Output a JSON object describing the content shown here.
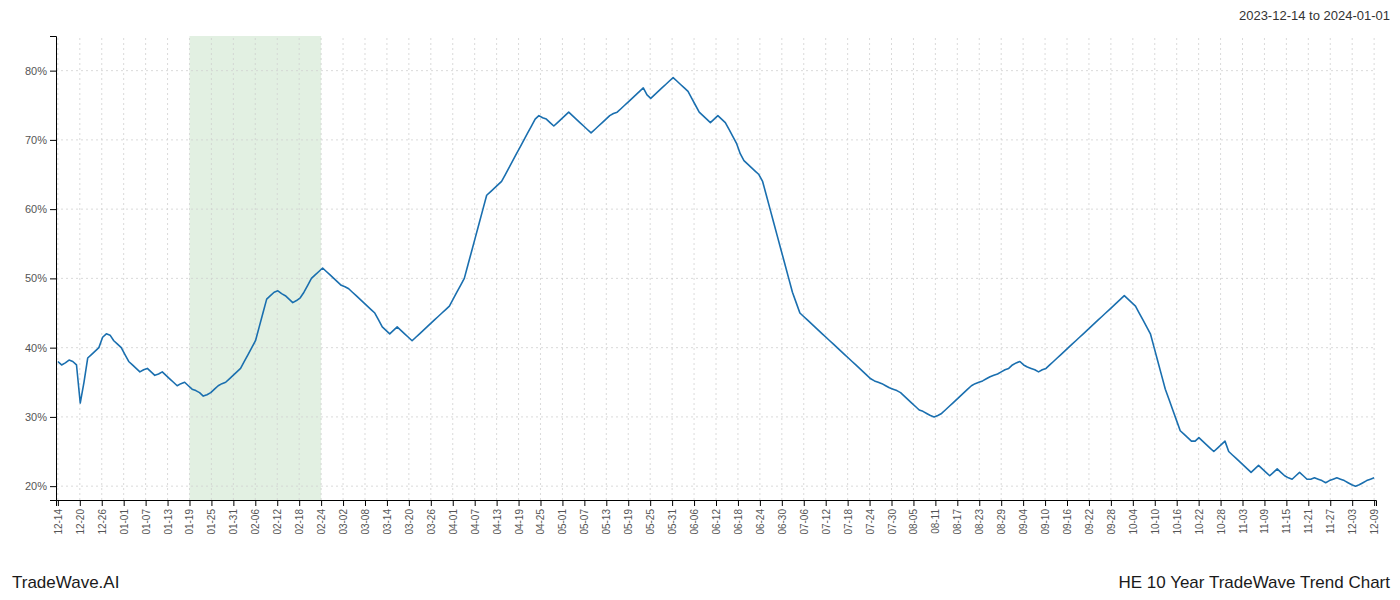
{
  "chart_data": {
    "type": "line",
    "title": "HE 10 Year TradeWave Trend Chart",
    "subtitle": "2023-12-14 to 2024-01-01",
    "annotations": [
      "TradeWave.AI"
    ],
    "color": "#1a6faf",
    "grid": true,
    "highlight": {
      "x": [
        35.3,
        70.6
      ],
      "color": "#e2f0e2"
    },
    "xlim": [
      -0.5,
      353.5
    ],
    "xticks": [
      {
        "value": 0,
        "label": "12-14"
      },
      {
        "value": 5.883333,
        "label": "12-20"
      },
      {
        "value": 11.766667,
        "label": "12-26"
      },
      {
        "value": 17.65,
        "label": "01-01"
      },
      {
        "value": 23.533333,
        "label": "01-07"
      },
      {
        "value": 29.416667,
        "label": "01-13"
      },
      {
        "value": 35.3,
        "label": "01-19"
      },
      {
        "value": 41.183333,
        "label": "01-25"
      },
      {
        "value": 47.066667,
        "label": "01-31"
      },
      {
        "value": 52.95,
        "label": "02-06"
      },
      {
        "value": 58.833333,
        "label": "02-12"
      },
      {
        "value": 64.716667,
        "label": "02-18"
      },
      {
        "value": 70.6,
        "label": "02-24"
      },
      {
        "value": 76.483333,
        "label": "03-02"
      },
      {
        "value": 82.366667,
        "label": "03-08"
      },
      {
        "value": 88.25,
        "label": "03-14"
      },
      {
        "value": 94.133333,
        "label": "03-20"
      },
      {
        "value": 100.016667,
        "label": "03-26"
      },
      {
        "value": 105.9,
        "label": "04-01"
      },
      {
        "value": 111.783333,
        "label": "04-07"
      },
      {
        "value": 117.666667,
        "label": "04-13"
      },
      {
        "value": 123.55,
        "label": "04-19"
      },
      {
        "value": 129.433333,
        "label": "04-25"
      },
      {
        "value": 135.316667,
        "label": "05-01"
      },
      {
        "value": 141.2,
        "label": "05-07"
      },
      {
        "value": 147.083333,
        "label": "05-13"
      },
      {
        "value": 152.966667,
        "label": "05-19"
      },
      {
        "value": 158.85,
        "label": "05-25"
      },
      {
        "value": 164.733333,
        "label": "05-31"
      },
      {
        "value": 170.616667,
        "label": "06-06"
      },
      {
        "value": 176.5,
        "label": "06-12"
      },
      {
        "value": 182.383333,
        "label": "06-18"
      },
      {
        "value": 188.266667,
        "label": "06-24"
      },
      {
        "value": 194.15,
        "label": "06-30"
      },
      {
        "value": 200.033333,
        "label": "07-06"
      },
      {
        "value": 205.916667,
        "label": "07-12"
      },
      {
        "value": 211.8,
        "label": "07-18"
      },
      {
        "value": 217.683333,
        "label": "07-24"
      },
      {
        "value": 223.566667,
        "label": "07-30"
      },
      {
        "value": 229.45,
        "label": "08-05"
      },
      {
        "value": 235.333333,
        "label": "08-11"
      },
      {
        "value": 241.216667,
        "label": "08-17"
      },
      {
        "value": 247.1,
        "label": "08-23"
      },
      {
        "value": 252.983333,
        "label": "08-29"
      },
      {
        "value": 258.866667,
        "label": "09-04"
      },
      {
        "value": 264.75,
        "label": "09-10"
      },
      {
        "value": 270.633333,
        "label": "09-16"
      },
      {
        "value": 276.516667,
        "label": "09-22"
      },
      {
        "value": 282.4,
        "label": "09-28"
      },
      {
        "value": 288.283333,
        "label": "10-04"
      },
      {
        "value": 294.166667,
        "label": "10-10"
      },
      {
        "value": 300.05,
        "label": "10-16"
      },
      {
        "value": 305.933333,
        "label": "10-22"
      },
      {
        "value": 311.816667,
        "label": "10-28"
      },
      {
        "value": 317.7,
        "label": "11-03"
      },
      {
        "value": 323.583333,
        "label": "11-09"
      },
      {
        "value": 329.466667,
        "label": "11-15"
      },
      {
        "value": 335.35,
        "label": "11-21"
      },
      {
        "value": 341.233333,
        "label": "11-27"
      },
      {
        "value": 347.116667,
        "label": "12-03"
      },
      {
        "value": 353,
        "label": "12-09"
      }
    ],
    "ylim": [
      18,
      85
    ],
    "yticks": [
      {
        "value": 20,
        "label": "20%"
      },
      {
        "value": 30,
        "label": "30%"
      },
      {
        "value": 40,
        "label": "40%"
      },
      {
        "value": 50,
        "label": "50%"
      },
      {
        "value": 60,
        "label": "60%"
      },
      {
        "value": 70,
        "label": "70%"
      },
      {
        "value": 80,
        "label": "80%"
      }
    ],
    "values": [
      38.0,
      37.5,
      37.8,
      38.2,
      38.0,
      37.5,
      32.0,
      35.0,
      38.5,
      39.0,
      39.5,
      40.0,
      41.5,
      42.0,
      41.8,
      41.0,
      40.5,
      40.0,
      39.0,
      38.0,
      37.5,
      37.0,
      36.5,
      36.8,
      37.0,
      36.5,
      36.0,
      36.2,
      36.5,
      36.0,
      35.5,
      35.0,
      34.5,
      34.8,
      35.0,
      34.5,
      34.0,
      33.8,
      33.5,
      33.0,
      33.2,
      33.5,
      34.0,
      34.5,
      34.8,
      35.0,
      35.5,
      36.0,
      36.5,
      37.0,
      38.0,
      39.0,
      40.0,
      41.0,
      43.0,
      45.0,
      47.0,
      47.5,
      48.0,
      48.2,
      47.8,
      47.5,
      47.0,
      46.5,
      46.8,
      47.2,
      48.0,
      49.0,
      50.0,
      50.5,
      51.0,
      51.5,
      51.0,
      50.5,
      50.0,
      49.5,
      49.0,
      48.8,
      48.5,
      48.0,
      47.5,
      47.0,
      46.5,
      46.0,
      45.5,
      45.0,
      44.0,
      43.0,
      42.5,
      42.0,
      42.5,
      43.0,
      42.5,
      42.0,
      41.5,
      41.0,
      41.5,
      42.0,
      42.5,
      43.0,
      43.5,
      44.0,
      44.5,
      45.0,
      45.5,
      46.0,
      47.0,
      48.0,
      49.0,
      50.0,
      52.0,
      54.0,
      56.0,
      58.0,
      60.0,
      62.0,
      62.5,
      63.0,
      63.5,
      64.0,
      65.0,
      66.0,
      67.0,
      68.0,
      69.0,
      70.0,
      71.0,
      72.0,
      73.0,
      73.5,
      73.2,
      73.0,
      72.5,
      72.0,
      72.5,
      73.0,
      73.5,
      74.0,
      73.5,
      73.0,
      72.5,
      72.0,
      71.5,
      71.0,
      71.5,
      72.0,
      72.5,
      73.0,
      73.5,
      73.8,
      74.0,
      74.5,
      75.0,
      75.5,
      76.0,
      76.5,
      77.0,
      77.5,
      76.5,
      76.0,
      76.5,
      77.0,
      77.5,
      78.0,
      78.5,
      79.0,
      78.5,
      78.0,
      77.5,
      77.0,
      76.0,
      75.0,
      74.0,
      73.5,
      73.0,
      72.5,
      73.0,
      73.5,
      73.0,
      72.5,
      71.5,
      70.5,
      69.5,
      68.0,
      67.0,
      66.5,
      66.0,
      65.5,
      65.0,
      64.0,
      62.0,
      60.0,
      58.0,
      56.0,
      54.0,
      52.0,
      50.0,
      48.0,
      46.5,
      45.0,
      44.5,
      44.0,
      43.5,
      43.0,
      42.5,
      42.0,
      41.5,
      41.0,
      40.5,
      40.0,
      39.5,
      39.0,
      38.5,
      38.0,
      37.5,
      37.0,
      36.5,
      36.0,
      35.5,
      35.2,
      35.0,
      34.8,
      34.5,
      34.2,
      34.0,
      33.8,
      33.5,
      33.0,
      32.5,
      32.0,
      31.5,
      31.0,
      30.8,
      30.5,
      30.2,
      30.0,
      30.2,
      30.5,
      31.0,
      31.5,
      32.0,
      32.5,
      33.0,
      33.5,
      34.0,
      34.5,
      34.8,
      35.0,
      35.2,
      35.5,
      35.8,
      36.0,
      36.2,
      36.5,
      36.8,
      37.0,
      37.5,
      37.8,
      38.0,
      37.5,
      37.2,
      37.0,
      36.8,
      36.5,
      36.8,
      37.0,
      37.5,
      38.0,
      38.5,
      39.0,
      39.5,
      40.0,
      40.5,
      41.0,
      41.5,
      42.0,
      42.5,
      43.0,
      43.5,
      44.0,
      44.5,
      45.0,
      45.5,
      46.0,
      46.5,
      47.0,
      47.5,
      47.0,
      46.5,
      46.0,
      45.0,
      44.0,
      43.0,
      42.0,
      40.0,
      38.0,
      36.0,
      34.0,
      32.5,
      31.0,
      29.5,
      28.0,
      27.5,
      27.0,
      26.5,
      26.5,
      27.0,
      26.5,
      26.0,
      25.5,
      25.0,
      25.5,
      26.0,
      26.5,
      25.0,
      24.5,
      24.0,
      23.5,
      23.0,
      22.5,
      22.0,
      22.5,
      23.0,
      22.5,
      22.0,
      21.5,
      22.0,
      22.5,
      22.0,
      21.5,
      21.2,
      21.0,
      21.5,
      22.0,
      21.5,
      21.0,
      21.0,
      21.2,
      21.0,
      20.8,
      20.5,
      20.8,
      21.0,
      21.2,
      21.0,
      20.8,
      20.5,
      20.2,
      20.0,
      20.2,
      20.5,
      20.8,
      21.0,
      21.2
    ]
  }
}
